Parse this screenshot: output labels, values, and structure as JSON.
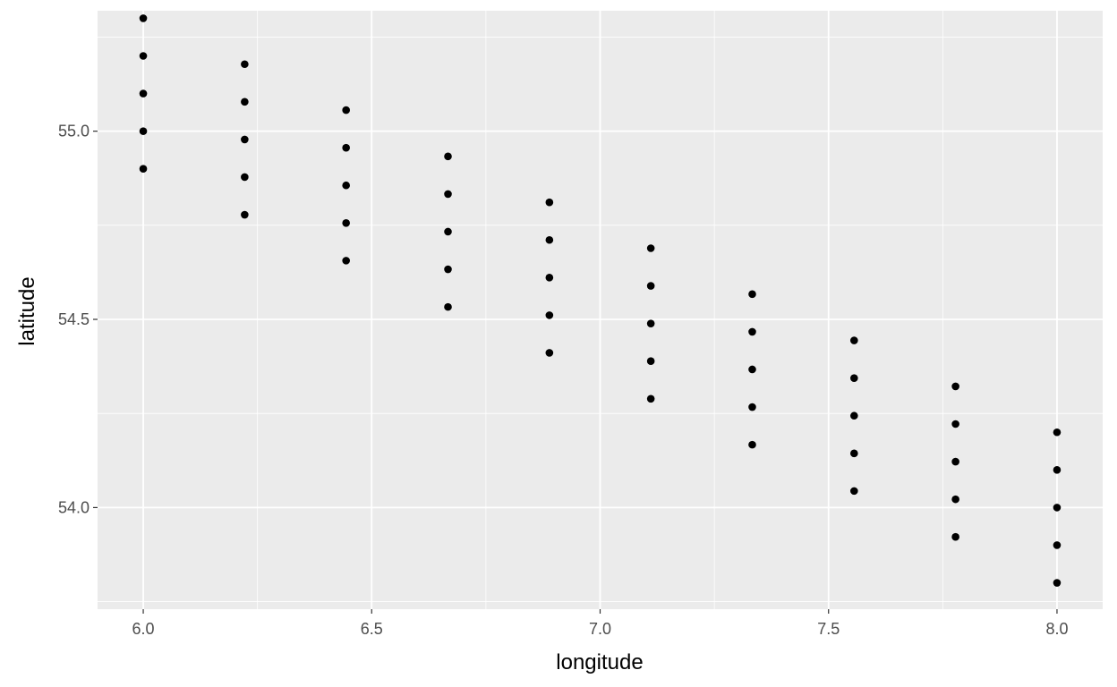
{
  "chart_data": {
    "type": "scatter",
    "title": "",
    "xlabel": "longitude",
    "ylabel": "latitude",
    "xlim": [
      5.9,
      8.1
    ],
    "ylim": [
      53.73,
      55.32
    ],
    "x_ticks": [
      6.0,
      6.5,
      7.0,
      7.5,
      8.0
    ],
    "x_tick_labels": [
      "6.0",
      "6.5",
      "7.0",
      "7.5",
      "8.0"
    ],
    "y_ticks": [
      54.0,
      54.5,
      55.0
    ],
    "y_tick_labels": [
      "54.0",
      "54.5",
      "55.0"
    ],
    "x_minor_ticks": [
      6.25,
      6.75,
      7.25,
      7.75
    ],
    "y_minor_ticks": [
      53.75,
      54.25,
      54.75,
      55.25
    ],
    "grid": true,
    "legend": "none",
    "colors": {
      "panel": "#ebebeb",
      "grid": "#ffffff",
      "point": "#000000"
    },
    "series": [
      {
        "points": [
          [
            6.0,
            55.3
          ],
          [
            6.0,
            55.2
          ],
          [
            6.0,
            55.1
          ],
          [
            6.0,
            55.0
          ],
          [
            6.0,
            54.9
          ],
          [
            6.222,
            55.178
          ],
          [
            6.222,
            55.078
          ],
          [
            6.222,
            54.978
          ],
          [
            6.222,
            54.878
          ],
          [
            6.222,
            54.778
          ],
          [
            6.444,
            55.056
          ],
          [
            6.444,
            54.956
          ],
          [
            6.444,
            54.856
          ],
          [
            6.444,
            54.756
          ],
          [
            6.444,
            54.656
          ],
          [
            6.667,
            54.933
          ],
          [
            6.667,
            54.833
          ],
          [
            6.667,
            54.733
          ],
          [
            6.667,
            54.633
          ],
          [
            6.667,
            54.533
          ],
          [
            6.889,
            54.811
          ],
          [
            6.889,
            54.711
          ],
          [
            6.889,
            54.611
          ],
          [
            6.889,
            54.511
          ],
          [
            6.889,
            54.411
          ],
          [
            7.111,
            54.689
          ],
          [
            7.111,
            54.589
          ],
          [
            7.111,
            54.489
          ],
          [
            7.111,
            54.389
          ],
          [
            7.111,
            54.289
          ],
          [
            7.333,
            54.567
          ],
          [
            7.333,
            54.467
          ],
          [
            7.333,
            54.367
          ],
          [
            7.333,
            54.267
          ],
          [
            7.333,
            54.167
          ],
          [
            7.556,
            54.444
          ],
          [
            7.556,
            54.344
          ],
          [
            7.556,
            54.244
          ],
          [
            7.556,
            54.144
          ],
          [
            7.556,
            54.044
          ],
          [
            7.778,
            54.322
          ],
          [
            7.778,
            54.222
          ],
          [
            7.778,
            54.122
          ],
          [
            7.778,
            54.022
          ],
          [
            7.778,
            53.922
          ],
          [
            8.0,
            54.2
          ],
          [
            8.0,
            54.1
          ],
          [
            8.0,
            54.0
          ],
          [
            8.0,
            53.9
          ],
          [
            8.0,
            53.8
          ]
        ]
      }
    ]
  }
}
